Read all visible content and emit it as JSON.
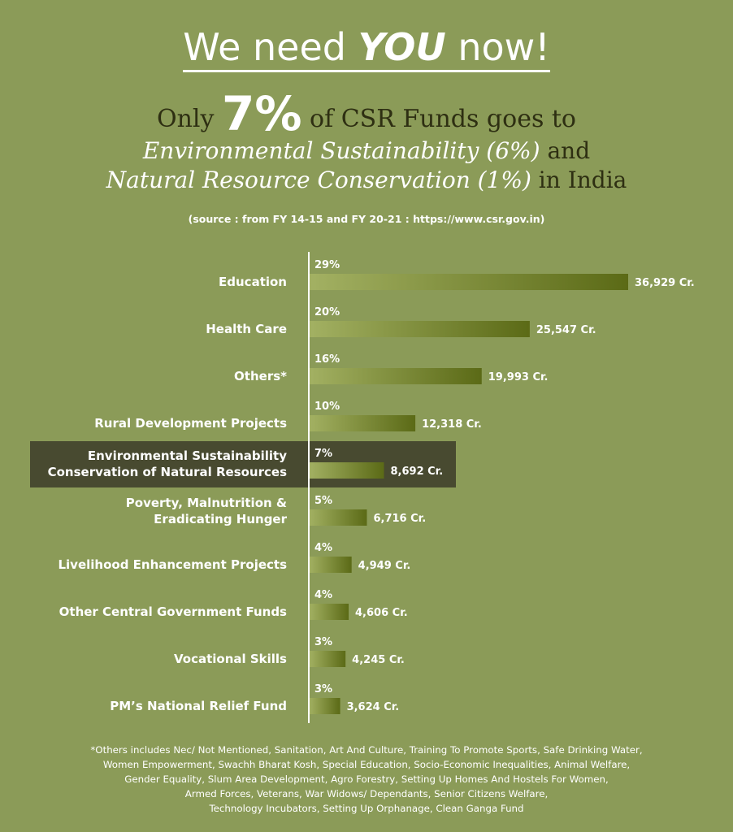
{
  "header": {
    "title_pre": "We need ",
    "title_emphasis": "YOU",
    "title_post": " now!",
    "line1_pre": "Only ",
    "line1_big": "7%",
    "line1_post": " of CSR Funds goes to",
    "line2_italic": "Environmental Sustainability (6%)",
    "line2_post": " and",
    "line3_italic": "Natural Resource Conservation (1%)",
    "line3_post": " in India",
    "source": "(source : from FY 14-15 and FY 20-21 : https://www.csr.gov.in)"
  },
  "chart_data": {
    "type": "bar",
    "orientation": "horizontal",
    "categories": [
      [
        "Education"
      ],
      [
        "Health Care"
      ],
      [
        "Others*"
      ],
      [
        "Rural Development Projects"
      ],
      [
        "Environmental Sustainability",
        "Conservation of Natural Resources"
      ],
      [
        "Poverty, Malnutrition &",
        "Eradicating Hunger"
      ],
      [
        "Livelihood Enhancement Projects"
      ],
      [
        "Other Central Government Funds"
      ],
      [
        "Vocational Skills"
      ],
      [
        "PM’s National Relief Fund"
      ]
    ],
    "values": [
      36929,
      25547,
      19993,
      12318,
      8692,
      6716,
      4949,
      4606,
      4245,
      3624
    ],
    "value_labels": [
      "36,929 Cr.",
      "25,547 Cr.",
      "19,993 Cr.",
      "12,318 Cr.",
      "8,692 Cr.",
      "6,716 Cr.",
      "4,949 Cr.",
      "4,606 Cr.",
      "4,245 Cr.",
      "3,624 Cr."
    ],
    "percent_labels": [
      "29%",
      "20%",
      "16%",
      "10%",
      "7%",
      "5%",
      "4%",
      "4%",
      "3%",
      "3%"
    ],
    "highlight_index": 4,
    "colors": {
      "background": "#8b9b58",
      "bar_start": "#a3b163",
      "bar_end": "#5b6a16",
      "highlight_box": "#484a30",
      "axis": "#ffffff",
      "text": "#ffffff"
    }
  },
  "footnote": {
    "lines": [
      "*Others includes Nec/ Not Mentioned, Sanitation, Art And Culture, Training To Promote Sports, Safe Drinking Water,",
      "Women Empowerment, Swachh Bharat Kosh, Special Education, Socio-Economic Inequalities, Animal Welfare,",
      "Gender Equality, Slum Area Development, Agro Forestry, Setting Up Homes And Hostels For Women,",
      "Armed Forces, Veterans, War Widows/ Dependants, Senior Citizens Welfare,",
      "Technology Incubators, Setting Up Orphanage, Clean Ganga Fund"
    ]
  }
}
